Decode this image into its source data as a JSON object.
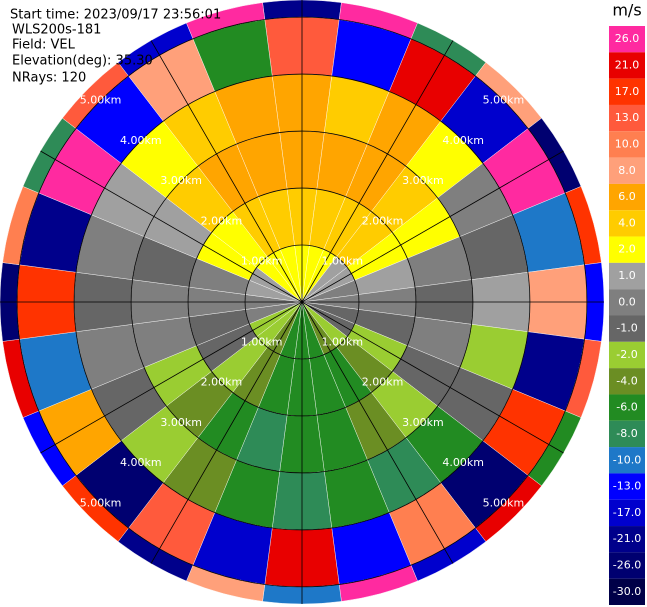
{
  "chart_data": {
    "type": "ppi",
    "header": [
      "Start time: 2023/09/17 23:56:01",
      "WLS200s-181",
      "Field: VEL",
      "Elevation(deg): 35.30",
      "NRays: 120"
    ],
    "azimuths": [
      0,
      15,
      30,
      45,
      60,
      75,
      90,
      105,
      120,
      135,
      150,
      165,
      180,
      195,
      210,
      225,
      240,
      255,
      270,
      285,
      300,
      315,
      330,
      345
    ],
    "range_edges": [
      0,
      1,
      2,
      3,
      4,
      5,
      5.3
    ],
    "values": [
      [
        2,
        4,
        6,
        6,
        13,
        -21
      ],
      [
        2,
        4,
        6,
        4,
        -13,
        26
      ],
      [
        2,
        4,
        6,
        6,
        21,
        -8
      ],
      [
        1,
        4,
        4,
        2,
        -17,
        8
      ],
      [
        1,
        2,
        2,
        0,
        26,
        -26
      ],
      [
        0,
        1,
        0,
        -1,
        -10,
        17
      ],
      [
        0,
        0,
        -1,
        1,
        8,
        -13
      ],
      [
        -1,
        -1,
        0,
        -2,
        -21,
        13
      ],
      [
        -1,
        -2,
        -1,
        -1,
        17,
        -6
      ],
      [
        -2,
        -4,
        -2,
        -6,
        -26,
        21
      ],
      [
        -4,
        -6,
        -4,
        -8,
        10,
        -17
      ],
      [
        -6,
        -6,
        -6,
        -6,
        -13,
        26
      ],
      [
        -6,
        -6,
        -6,
        -8,
        21,
        -10
      ],
      [
        -6,
        -6,
        -8,
        -6,
        -17,
        8
      ],
      [
        -4,
        -4,
        -6,
        -4,
        13,
        -21
      ],
      [
        -2,
        -2,
        -4,
        -2,
        -26,
        17
      ],
      [
        -2,
        -1,
        -2,
        -1,
        6,
        -13
      ],
      [
        0,
        -1,
        0,
        0,
        -10,
        21
      ],
      [
        0,
        0,
        0,
        -1,
        17,
        -26
      ],
      [
        1,
        0,
        -1,
        0,
        -21,
        10
      ],
      [
        1,
        2,
        1,
        1,
        26,
        -8
      ],
      [
        2,
        2,
        4,
        2,
        -13,
        13
      ],
      [
        2,
        4,
        6,
        4,
        8,
        -17
      ],
      [
        2,
        4,
        6,
        6,
        -6,
        26
      ]
    ],
    "rings": [
      {
        "value": 1,
        "label": "1.00km"
      },
      {
        "value": 2,
        "label": "2.00km"
      },
      {
        "value": 3,
        "label": "3.00km"
      },
      {
        "value": 4,
        "label": "4.00km"
      },
      {
        "value": 5,
        "label": "5.00km"
      }
    ],
    "angle_grid": [
      0,
      30,
      60,
      90,
      120,
      150,
      180,
      210,
      240,
      270,
      300,
      330
    ],
    "colorbar": {
      "title": "m/s",
      "ticks": [
        {
          "value": 26,
          "label": "26.0"
        },
        {
          "value": 21,
          "label": "21.0"
        },
        {
          "value": 17,
          "label": "17.0"
        },
        {
          "value": 13,
          "label": "13.0"
        },
        {
          "value": 10,
          "label": "10.0"
        },
        {
          "value": 8,
          "label": "8.0"
        },
        {
          "value": 6,
          "label": "6.0"
        },
        {
          "value": 4,
          "label": "4.0"
        },
        {
          "value": 2,
          "label": "2.0"
        },
        {
          "value": 1,
          "label": "1.0"
        },
        {
          "value": 0,
          "label": "0.0"
        },
        {
          "value": -1,
          "label": "-1.0"
        },
        {
          "value": -2,
          "label": "-2.0"
        },
        {
          "value": -4,
          "label": "-4.0"
        },
        {
          "value": -6,
          "label": "-6.0"
        },
        {
          "value": -8,
          "label": "-8.0"
        },
        {
          "value": -10,
          "label": "-10.0"
        },
        {
          "value": -13,
          "label": "-13.0"
        },
        {
          "value": -17,
          "label": "-17.0"
        },
        {
          "value": -21,
          "label": "-21.0"
        },
        {
          "value": -26,
          "label": "-26.0"
        },
        {
          "value": -30,
          "label": "-30.0"
        }
      ],
      "colors": [
        "#ff2aa0",
        "#e80000",
        "#ff3300",
        "#ff5a3c",
        "#ff7f50",
        "#ffa07a",
        "#ffa500",
        "#ffcc00",
        "#ffff00",
        "#a0a0a0",
        "#7f7f7f",
        "#666666",
        "#9acd32",
        "#6b8e23",
        "#228b22",
        "#2e8b57",
        "#1e78c8",
        "#0000ff",
        "#0000cd",
        "#00008b",
        "#000070",
        "#000048"
      ]
    }
  }
}
